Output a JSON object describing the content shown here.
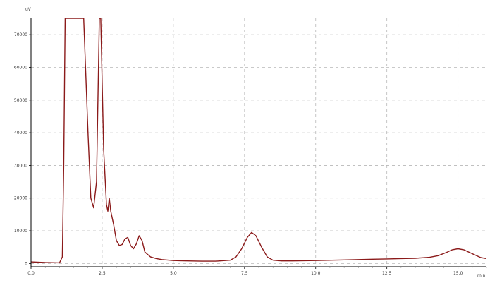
{
  "chart_data": {
    "type": "line",
    "title": "",
    "xlabel": "",
    "ylabel": "",
    "y_unit": "uV",
    "x_unit": "min",
    "xlim": [
      0,
      16
    ],
    "ylim": [
      -1000,
      75000
    ],
    "x_ticks": [
      0,
      2.5,
      5.0,
      7.5,
      10.0,
      12.5,
      15.0
    ],
    "x_tick_labels": [
      "0.0",
      "2.5",
      "5.0",
      "7.5",
      "10.0",
      "12.5",
      "15.0"
    ],
    "y_ticks": [
      0,
      10000,
      20000,
      30000,
      40000,
      50000,
      60000,
      70000
    ],
    "y_tick_labels": [
      "0",
      "10000",
      "20000",
      "30000",
      "40000",
      "50000",
      "60000",
      "70000"
    ],
    "grid": true,
    "grid_style": "dashed",
    "line_color": "#8b1a1a",
    "series": [
      {
        "x": [
          0.0,
          0.5,
          1.0,
          1.1,
          1.15,
          1.2,
          1.25,
          1.3,
          1.35,
          1.5,
          1.7,
          1.85,
          2.0,
          2.05,
          2.1,
          2.2,
          2.3,
          2.35,
          2.4,
          2.45,
          2.55,
          2.65,
          2.7,
          2.75,
          2.8,
          2.9,
          3.0,
          3.1,
          3.2,
          3.3,
          3.4,
          3.5,
          3.6,
          3.7,
          3.8,
          3.9,
          4.0,
          4.2,
          4.4,
          4.6,
          5.0,
          5.5,
          6.0,
          6.5,
          7.0,
          7.2,
          7.4,
          7.6,
          7.75,
          7.9,
          8.1,
          8.3,
          8.5,
          8.8,
          9.2,
          10.0,
          11.0,
          12.0,
          12.5,
          13.0,
          13.5,
          14.0,
          14.3,
          14.6,
          14.8,
          15.0,
          15.2,
          15.5,
          15.8,
          16.0
        ],
        "y": [
          500,
          300,
          200,
          2000,
          30000,
          75000,
          75000,
          75000,
          75000,
          75000,
          75000,
          75000,
          40000,
          30000,
          20000,
          17000,
          25000,
          50000,
          75000,
          75000,
          35000,
          18000,
          16000,
          20000,
          16000,
          12000,
          7000,
          5500,
          5800,
          7500,
          8000,
          5500,
          4500,
          6000,
          8500,
          7000,
          3500,
          2000,
          1500,
          1200,
          900,
          800,
          700,
          700,
          1000,
          2000,
          4500,
          8000,
          9500,
          8500,
          5000,
          2000,
          1000,
          800,
          800,
          900,
          1100,
          1300,
          1400,
          1500,
          1600,
          1900,
          2400,
          3400,
          4200,
          4500,
          4200,
          3000,
          1800,
          1500
        ]
      }
    ]
  }
}
